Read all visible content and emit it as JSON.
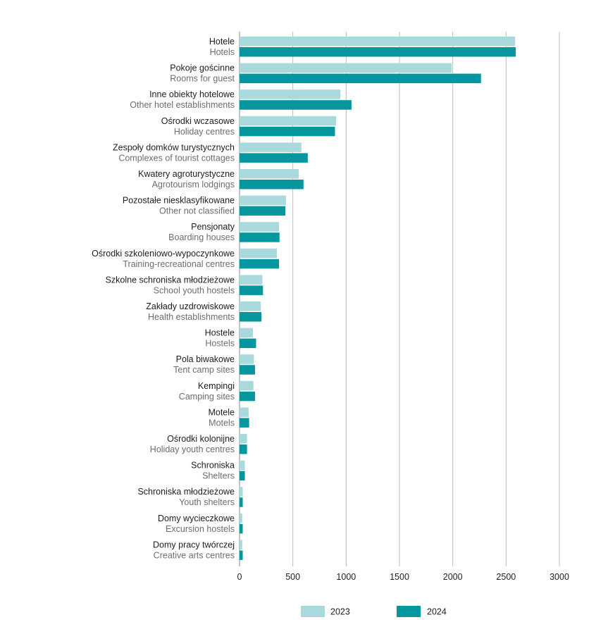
{
  "chart_data": {
    "type": "bar",
    "orientation": "horizontal",
    "xlim": [
      0,
      3000
    ],
    "xticks": [
      0,
      500,
      1000,
      1500,
      2000,
      2500,
      3000
    ],
    "grid": true,
    "legend_position": "bottom",
    "categories": [
      {
        "pl": "Hotele",
        "en": "Hotels"
      },
      {
        "pl": "Pokoje gościnne",
        "en": "Rooms for guest"
      },
      {
        "pl": "Inne obiekty hotelowe",
        "en": "Other hotel establishments"
      },
      {
        "pl": "Ośrodki wczasowe",
        "en": "Holiday centres"
      },
      {
        "pl": "Zespoły domków turystycznych",
        "en": "Complexes of tourist cottages"
      },
      {
        "pl": "Kwatery agroturystyczne",
        "en": "Agrotourism lodgings"
      },
      {
        "pl": "Pozostałe niesklasyfikowane",
        "en": "Other not classified"
      },
      {
        "pl": "Pensjonaty",
        "en": "Boarding houses"
      },
      {
        "pl": "Ośrodki szkoleniowo-wypoczynkowe",
        "en": "Training-recreational centres"
      },
      {
        "pl": "Szkolne schroniska młodzieżowe",
        "en": "School youth hostels"
      },
      {
        "pl": "Zakłady uzdrowiskowe",
        "en": "Health establishments"
      },
      {
        "pl": "Hostele",
        "en": "Hostels"
      },
      {
        "pl": "Pola biwakowe",
        "en": "Tent camp sites"
      },
      {
        "pl": "Kempingi",
        "en": "Camping sites"
      },
      {
        "pl": "Motele",
        "en": "Motels"
      },
      {
        "pl": "Ośrodki kolonijne",
        "en": "Holiday youth centres"
      },
      {
        "pl": "Schroniska",
        "en": "Shelters"
      },
      {
        "pl": "Schroniska młodzieżowe",
        "en": "Youth shelters"
      },
      {
        "pl": "Domy wycieczkowe",
        "en": "Excursion hostels"
      },
      {
        "pl": "Domy pracy twórczej",
        "en": "Creative arts centres"
      }
    ],
    "series": [
      {
        "name": "2023",
        "color": "#a9d9dc",
        "values": [
          2585,
          1990,
          945,
          905,
          580,
          555,
          435,
          370,
          350,
          215,
          200,
          125,
          135,
          130,
          85,
          70,
          50,
          30,
          25,
          25
        ]
      },
      {
        "name": "2024",
        "color": "#06969e",
        "values": [
          2590,
          2265,
          1050,
          895,
          640,
          600,
          430,
          375,
          370,
          220,
          205,
          155,
          145,
          145,
          90,
          70,
          50,
          30,
          30,
          30
        ]
      }
    ]
  }
}
